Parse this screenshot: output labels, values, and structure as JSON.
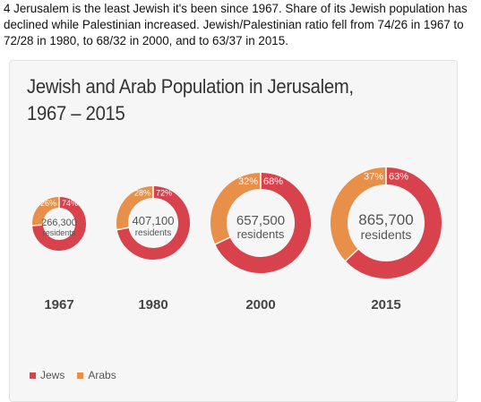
{
  "tweet": {
    "text": "4 Jerusalem is the least Jewish it's been since 1967. Share of its Jewish population has declined while Palestinian increased. Jewish/Palestinian ratio fell from 74/26 in 1967 to 72/28 in 1980, to 68/32 in 2000, and to 63/37 in 2015."
  },
  "colors": {
    "jews": "#d7424c",
    "arabs": "#e8904a",
    "year_text": "#444444",
    "center_text": "#555555"
  },
  "chart_data": {
    "type": "pie",
    "title_lines": [
      "Jewish and Arab Population in Jerusalem,",
      "1967 – 2015"
    ],
    "legend": [
      {
        "label": "Jews",
        "color": "#d7424c"
      },
      {
        "label": "Arabs",
        "color": "#e8904a"
      }
    ],
    "donuts": [
      {
        "year": "1967",
        "total": "266,300",
        "unit": "residents",
        "jews_pct": 74,
        "arabs_pct": 26,
        "jews_label": "74%",
        "arabs_label": "26%"
      },
      {
        "year": "1980",
        "total": "407,100",
        "unit": "residents",
        "jews_pct": 72,
        "arabs_pct": 28,
        "jews_label": "72%",
        "arabs_label": "28%"
      },
      {
        "year": "2000",
        "total": "657,500",
        "unit": "residents",
        "jews_pct": 68,
        "arabs_pct": 32,
        "jews_label": "68%",
        "arabs_label": "32%"
      },
      {
        "year": "2015",
        "total": "865,700",
        "unit": "residents",
        "jews_pct": 63,
        "arabs_pct": 37,
        "jews_label": "63%",
        "arabs_label": "37%"
      }
    ]
  }
}
